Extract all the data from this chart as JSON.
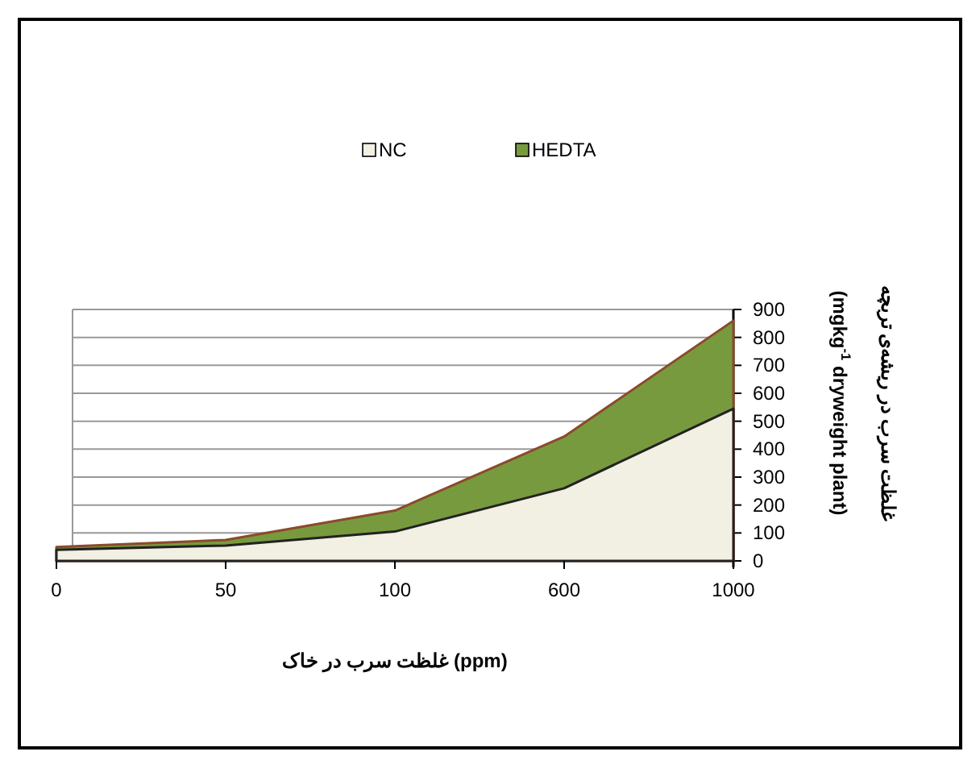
{
  "chart_data": {
    "type": "area",
    "categories": [
      "0",
      "50",
      "100",
      "600",
      "1000"
    ],
    "series": [
      {
        "name": "NC",
        "color": "#f2efe3",
        "values": [
          40,
          55,
          105,
          260,
          545
        ]
      },
      {
        "name": "HEDTA",
        "color": "#789a3e",
        "values": [
          50,
          75,
          180,
          445,
          860
        ]
      }
    ],
    "xlabel": "غلظت سرب در خاک (ppm)",
    "ylabel": "غلظت سرب در ریشه‌ی تربچه\n(mgkg$^{-1}$ dryweight  plant)",
    "ylim": [
      0,
      900
    ],
    "yticks": [
      0,
      100,
      200,
      300,
      400,
      500,
      600,
      700,
      800,
      900
    ],
    "grid": "y",
    "legend": "top",
    "marker": "none"
  }
}
